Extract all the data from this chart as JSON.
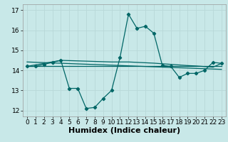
{
  "xlabel": "Humidex (Indice chaleur)",
  "bg_color": "#c8e8e8",
  "grid_color": "#b8d8d8",
  "line_color": "#006666",
  "xlim": [
    -0.5,
    23.5
  ],
  "ylim": [
    11.7,
    17.3
  ],
  "yticks": [
    12,
    13,
    14,
    15,
    16,
    17
  ],
  "xticks": [
    0,
    1,
    2,
    3,
    4,
    5,
    6,
    7,
    8,
    9,
    10,
    11,
    12,
    13,
    14,
    15,
    16,
    17,
    18,
    19,
    20,
    21,
    22,
    23
  ],
  "line1_x": [
    0,
    1,
    2,
    3,
    4,
    5,
    6,
    7,
    8,
    9,
    10,
    11,
    12,
    13,
    14,
    15,
    16,
    17,
    18,
    19,
    20,
    21,
    22,
    23
  ],
  "line1_y": [
    14.2,
    14.2,
    14.3,
    14.4,
    14.5,
    13.1,
    13.1,
    12.1,
    12.15,
    12.6,
    13.0,
    14.65,
    16.8,
    16.1,
    16.2,
    15.85,
    14.25,
    14.2,
    13.65,
    13.85,
    13.85,
    14.0,
    14.4,
    14.35
  ],
  "regline_x": [
    0,
    23
  ],
  "regline_y": [
    14.42,
    14.05
  ],
  "flatline_x": [
    0,
    23
  ],
  "flatline_y": [
    14.2,
    14.2
  ],
  "line4_x": [
    0,
    4,
    10,
    11,
    12,
    13,
    14,
    15,
    16,
    17,
    18,
    19,
    20,
    21,
    22,
    23
  ],
  "line4_y": [
    14.2,
    14.5,
    14.42,
    14.42,
    14.42,
    14.4,
    14.38,
    14.36,
    14.33,
    14.3,
    14.27,
    14.24,
    14.22,
    14.19,
    14.16,
    14.35
  ],
  "xlabel_fontsize": 8,
  "tick_fontsize": 6.5
}
